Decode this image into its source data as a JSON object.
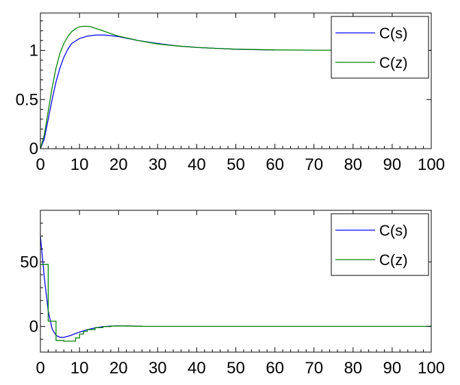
{
  "chart_data": [
    {
      "type": "line",
      "xlim": [
        0,
        100
      ],
      "ylim": [
        0,
        1.38
      ],
      "x_ticks": [
        0,
        10,
        20,
        30,
        40,
        50,
        60,
        70,
        80,
        90,
        100
      ],
      "y_ticks": [
        0,
        0.5,
        1
      ],
      "x_tick_labels": [
        "0",
        "10",
        "20",
        "30",
        "40",
        "50",
        "60",
        "70",
        "80",
        "90",
        "100"
      ],
      "y_tick_labels": [
        "0",
        "0.5",
        "1"
      ],
      "legend": {
        "position": "top-right",
        "entries": [
          "C(s)",
          "C(z)"
        ]
      },
      "grid": false,
      "series": [
        {
          "name": "C(s)",
          "color": "#0000ff",
          "style": "line",
          "points": [
            [
              0,
              0
            ],
            [
              1,
              0.1
            ],
            [
              2,
              0.3
            ],
            [
              3,
              0.5
            ],
            [
              4,
              0.68
            ],
            [
              5,
              0.82
            ],
            [
              6,
              0.93
            ],
            [
              7,
              1.01
            ],
            [
              8,
              1.07
            ],
            [
              10,
              1.12
            ],
            [
              12,
              1.145
            ],
            [
              14,
              1.155
            ],
            [
              16,
              1.157
            ],
            [
              18,
              1.15
            ],
            [
              20,
              1.14
            ],
            [
              25,
              1.1
            ],
            [
              30,
              1.07
            ],
            [
              35,
              1.045
            ],
            [
              40,
              1.03
            ],
            [
              45,
              1.02
            ],
            [
              50,
              1.012
            ],
            [
              55,
              1.007
            ],
            [
              60,
              1.004
            ]
          ]
        },
        {
          "name": "C(z)",
          "color": "#008000",
          "style": "line",
          "points": [
            [
              0,
              0
            ],
            [
              1,
              0.14
            ],
            [
              2,
              0.38
            ],
            [
              3,
              0.62
            ],
            [
              4,
              0.82
            ],
            [
              5,
              0.97
            ],
            [
              6,
              1.07
            ],
            [
              7,
              1.14
            ],
            [
              8,
              1.19
            ],
            [
              9,
              1.22
            ],
            [
              10,
              1.24
            ],
            [
              11,
              1.245
            ],
            [
              12,
              1.245
            ],
            [
              13,
              1.24
            ],
            [
              14,
              1.225
            ],
            [
              16,
              1.2
            ],
            [
              18,
              1.17
            ],
            [
              20,
              1.145
            ],
            [
              25,
              1.1
            ],
            [
              30,
              1.065
            ],
            [
              35,
              1.045
            ],
            [
              40,
              1.03
            ],
            [
              45,
              1.02
            ],
            [
              50,
              1.012
            ],
            [
              60,
              1.005
            ],
            [
              70,
              1.002
            ],
            [
              80,
              1.001
            ],
            [
              90,
              1.0
            ],
            [
              100,
              1.0
            ]
          ]
        }
      ]
    },
    {
      "type": "line",
      "xlim": [
        0,
        100
      ],
      "ylim": [
        -20,
        90
      ],
      "x_ticks": [
        0,
        10,
        20,
        30,
        40,
        50,
        60,
        70,
        80,
        90,
        100
      ],
      "y_ticks": [
        0,
        50
      ],
      "x_tick_labels": [
        "0",
        "10",
        "20",
        "30",
        "40",
        "50",
        "60",
        "70",
        "80",
        "90",
        "100"
      ],
      "y_tick_labels": [
        "0",
        "50"
      ],
      "legend": {
        "position": "top-right",
        "entries": [
          "C(s)",
          "C(z)"
        ]
      },
      "grid": false,
      "series": [
        {
          "name": "C(s)",
          "color": "#0000ff",
          "style": "line",
          "points": [
            [
              0,
              70
            ],
            [
              1,
              38
            ],
            [
              2,
              12
            ],
            [
              3,
              -2
            ],
            [
              4,
              -7
            ],
            [
              5,
              -8.5
            ],
            [
              6,
              -8.5
            ],
            [
              7,
              -7.8
            ],
            [
              8,
              -6.8
            ],
            [
              9,
              -5.6
            ],
            [
              10,
              -4.5
            ],
            [
              12,
              -2.6
            ],
            [
              14,
              -1.2
            ],
            [
              16,
              -0.3
            ],
            [
              18,
              0.2
            ],
            [
              20,
              0.4
            ],
            [
              22,
              0.35
            ],
            [
              24,
              0.2
            ],
            [
              26,
              0.1
            ]
          ]
        },
        {
          "name": "C(z)",
          "color": "#008000",
          "style": "step",
          "points": [
            [
              0,
              48
            ],
            [
              1,
              48
            ],
            [
              2,
              4
            ],
            [
              3,
              4
            ],
            [
              4,
              -11
            ],
            [
              6,
              -11.5
            ],
            [
              8,
              -11.5
            ],
            [
              9,
              -9
            ],
            [
              10,
              -6
            ],
            [
              11,
              -4
            ],
            [
              12,
              -2.5
            ],
            [
              14,
              -1
            ],
            [
              16,
              -0.2
            ],
            [
              18,
              0.2
            ],
            [
              20,
              0.3
            ],
            [
              22,
              0.2
            ],
            [
              24,
              0.1
            ],
            [
              26,
              0
            ],
            [
              100,
              0
            ]
          ]
        }
      ]
    }
  ]
}
